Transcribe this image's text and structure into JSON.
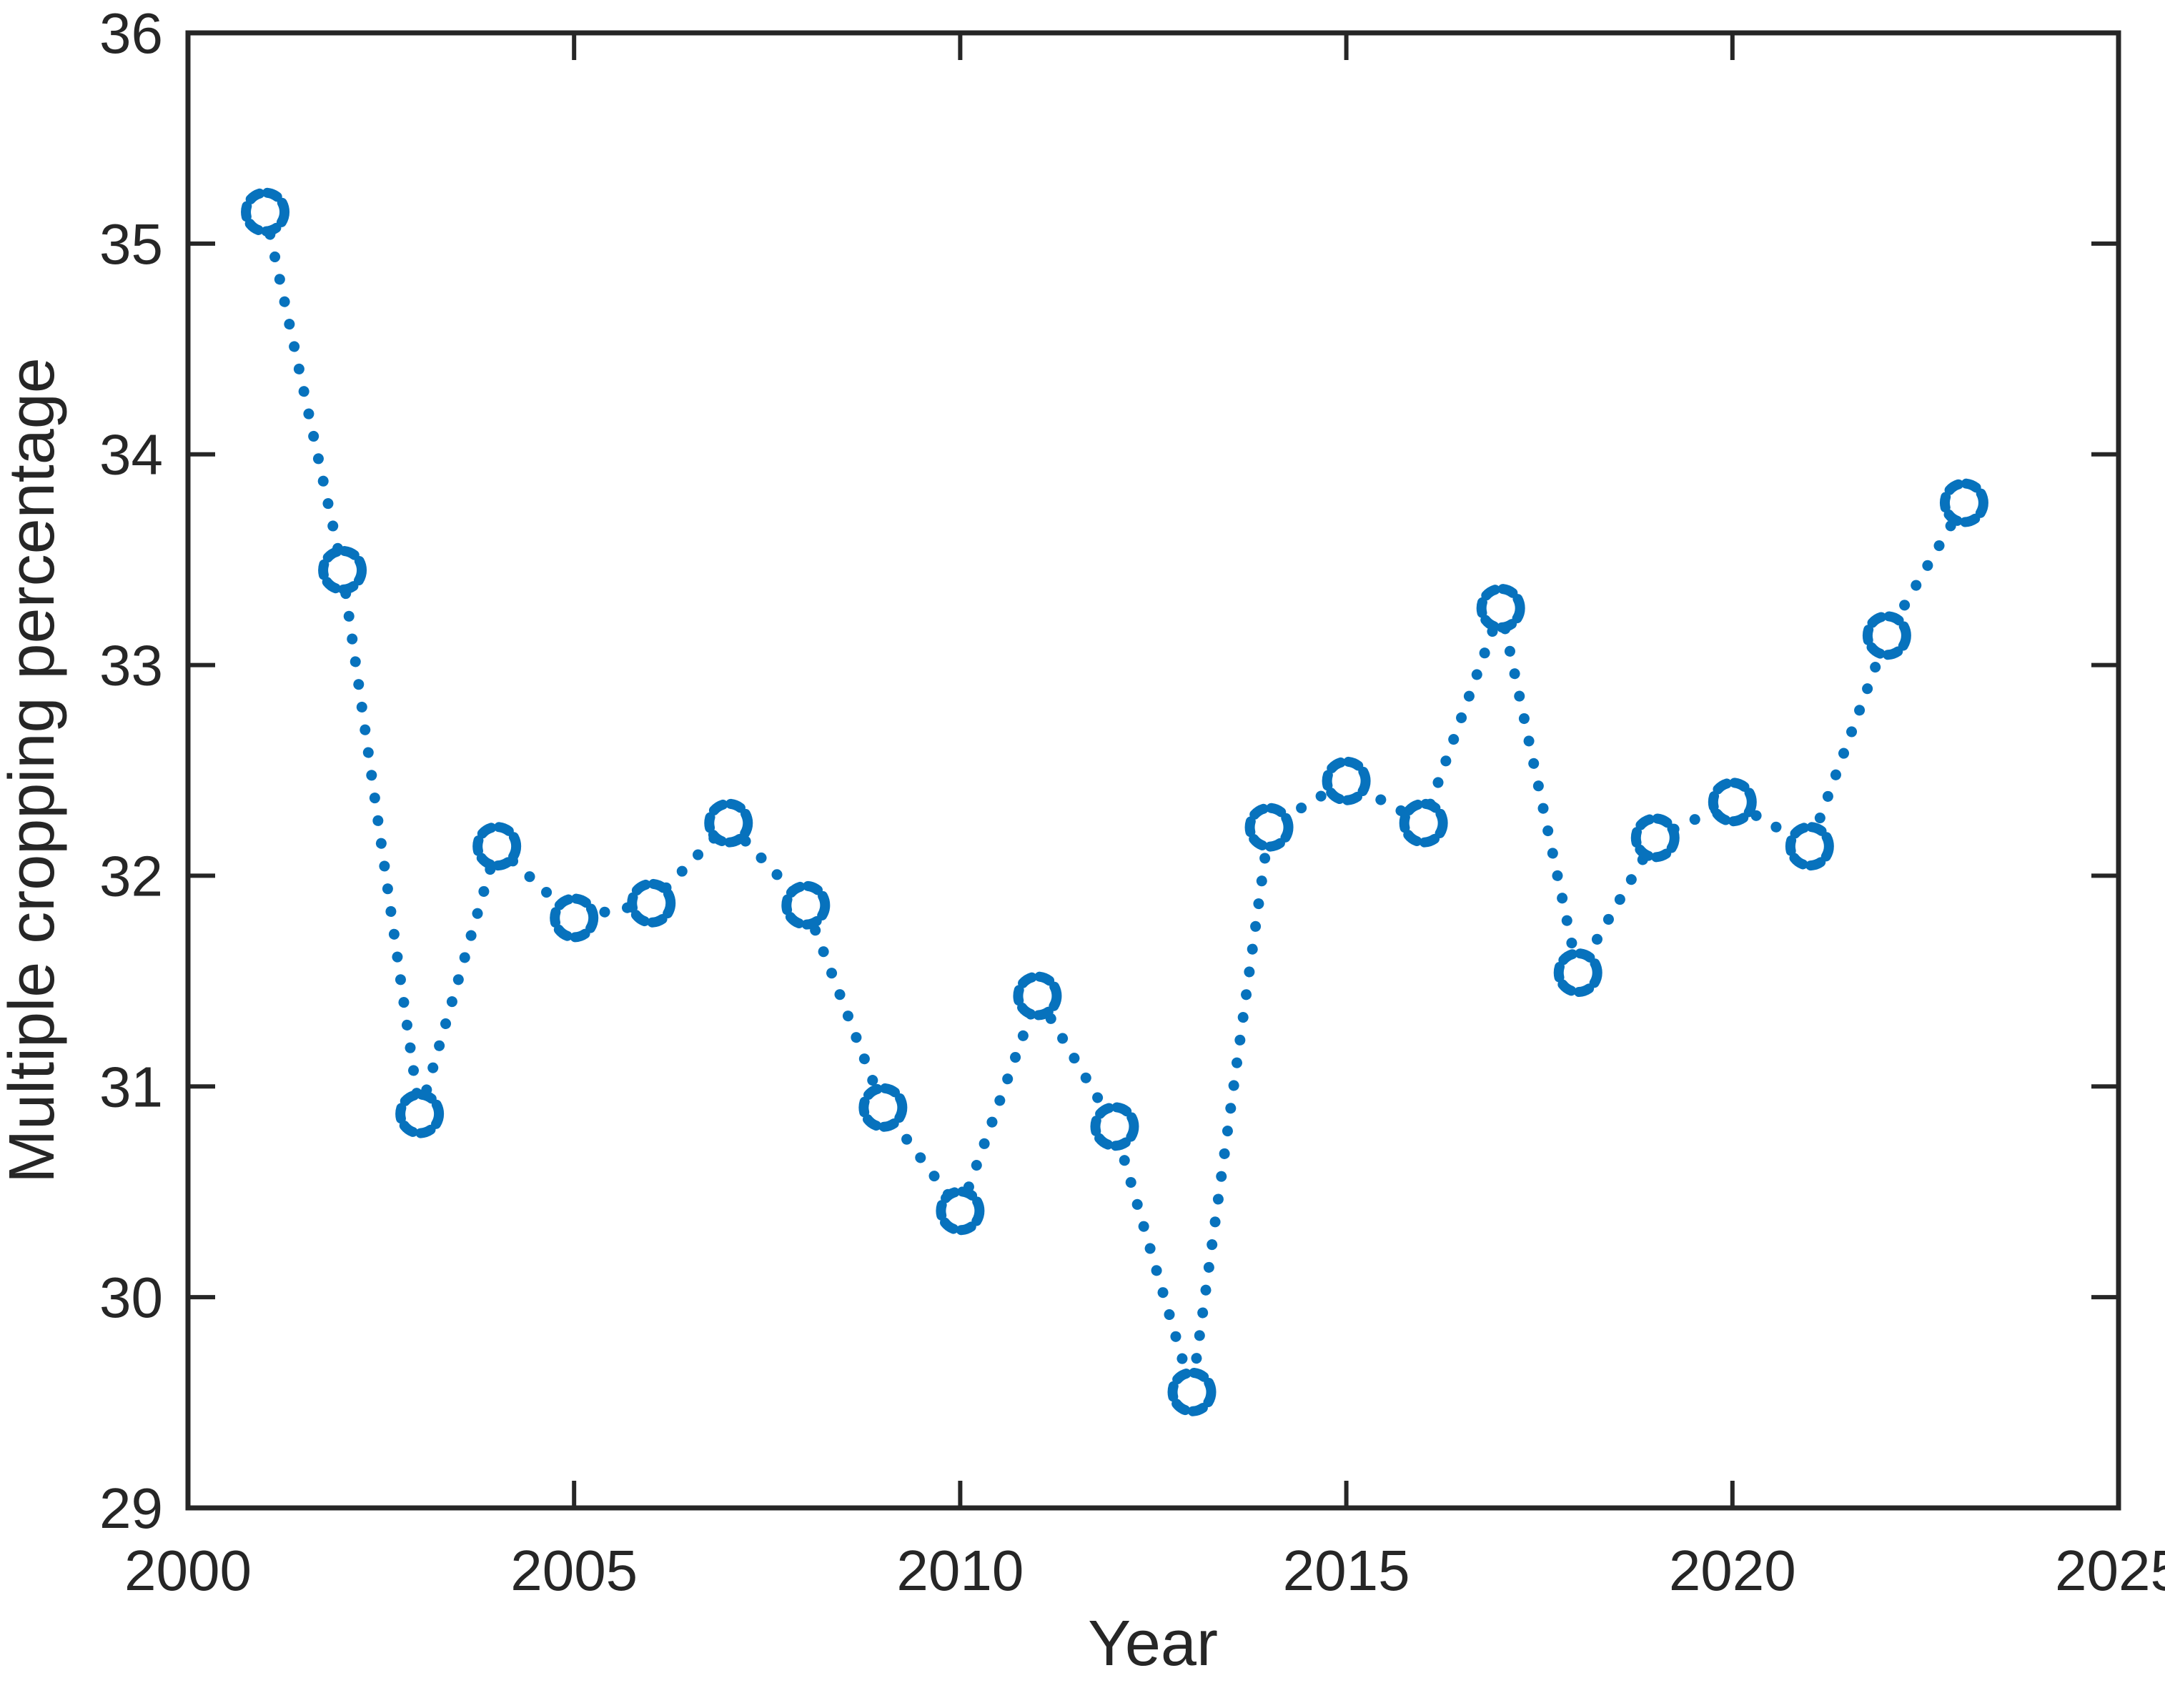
{
  "figure": {
    "background": "#ffffff"
  },
  "chart_data": {
    "type": "line",
    "title": "",
    "xlabel": "Year",
    "ylabel": "Multiple cropping percentage",
    "x": [
      2001,
      2002,
      2003,
      2004,
      2005,
      2006,
      2007,
      2008,
      2009,
      2010,
      2011,
      2012,
      2013,
      2014,
      2015,
      2016,
      2017,
      2018,
      2019,
      2020,
      2021,
      2022,
      2023
    ],
    "values": [
      35.15,
      33.45,
      30.87,
      32.14,
      31.8,
      31.87,
      32.25,
      31.86,
      30.9,
      30.41,
      31.43,
      30.81,
      29.55,
      32.23,
      32.45,
      32.25,
      33.27,
      31.54,
      32.18,
      32.35,
      32.14,
      33.14,
      33.77
    ],
    "xlim": [
      2000,
      2025
    ],
    "ylim": [
      29,
      36
    ],
    "xticks": [
      2000,
      2005,
      2010,
      2015,
      2020,
      2025
    ],
    "yticks": [
      29,
      30,
      31,
      32,
      33,
      34,
      35,
      36
    ],
    "grid": false,
    "legend_position": "none",
    "line_style": "dotted",
    "marker": "open-circle",
    "series_color": "#0772BD",
    "axis_color": "#262626",
    "box": true,
    "tick_direction": "in"
  }
}
